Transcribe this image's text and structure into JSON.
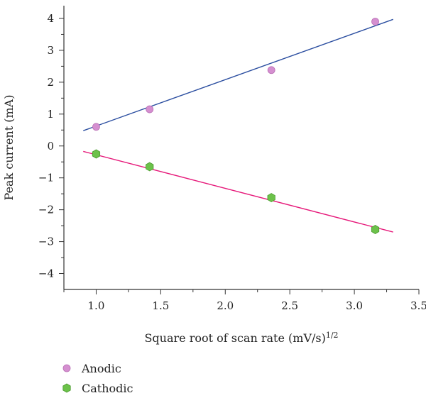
{
  "chart_data": {
    "type": "scatter",
    "title": "",
    "xlabel": "Square root of scan rate (mV/s)",
    "xlabel_superscript": "1/2",
    "ylabel": "Peak current (mA)",
    "xlim": [
      0.75,
      3.5
    ],
    "ylim": [
      -4.5,
      4.4
    ],
    "xticks": [
      1.0,
      1.5,
      2.0,
      2.5,
      3.0,
      3.5
    ],
    "xtick_labels": [
      "1.0",
      "1.5",
      "2.0",
      "2.5",
      "3.0",
      "3.5"
    ],
    "yticks": [
      -4,
      -3,
      -2,
      -1,
      0,
      1,
      2,
      3,
      4
    ],
    "ytick_labels": [
      "−4",
      "−3",
      "−2",
      "−1",
      "0",
      "1",
      "2",
      "3",
      "4"
    ],
    "grid": false,
    "legend_position": "bottom-left",
    "series": [
      {
        "name": "Anodic",
        "marker": "circle",
        "color": "#d58fd0",
        "fit_color": "#2b4ea0",
        "x": [
          1.0,
          1.414,
          2.357,
          3.162
        ],
        "y": [
          0.6,
          1.15,
          2.38,
          3.9
        ],
        "fit": {
          "x": [
            0.9,
            3.3
          ],
          "y": [
            0.48,
            3.97
          ]
        }
      },
      {
        "name": "Cathodic",
        "marker": "hexagon",
        "color": "#6cc24a",
        "fit_color": "#e6197a",
        "x": [
          1.0,
          1.414,
          2.357,
          3.162
        ],
        "y": [
          -0.25,
          -0.65,
          -1.62,
          -2.62
        ],
        "fit": {
          "x": [
            0.9,
            3.3
          ],
          "y": [
            -0.17,
            -2.7
          ]
        }
      }
    ]
  }
}
